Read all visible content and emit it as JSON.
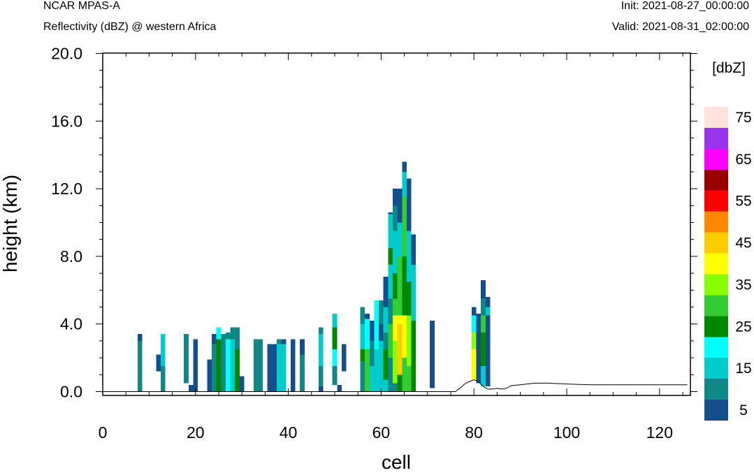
{
  "header": {
    "model": "NCAR MPAS-A",
    "field": "Reflectivity (dBZ) @ western Africa",
    "init": "Init: 2021-08-27_00:00:00",
    "valid": "Valid: 2021-08-31_02:00:00"
  },
  "chart_data": {
    "type": "heatmap",
    "xlabel": "cell",
    "ylabel": "height (km)",
    "xlim": [
      0,
      126
    ],
    "ylim": [
      0,
      20
    ],
    "x_ticks": [
      "0",
      "20",
      "40",
      "60",
      "80",
      "100",
      "120"
    ],
    "y_ticks": [
      "0.0",
      "4.0",
      "8.0",
      "12.0",
      "16.0",
      "20.0"
    ],
    "colorbar": {
      "unit_label": "[dbZ]",
      "labels": [
        "5",
        "15",
        "25",
        "35",
        "45",
        "55",
        "65",
        "75"
      ],
      "colors": [
        "#134f8c",
        "#118888",
        "#00cccc",
        "#00ffff",
        "#008800",
        "#33cc33",
        "#88ff00",
        "#ffff00",
        "#ffcc00",
        "#ff8800",
        "#ff0000",
        "#990000",
        "#ff00ff",
        "#9933ee",
        "#ffe2dc"
      ]
    },
    "columns": [
      {
        "x": 8,
        "segments": [
          [
            0,
            3.0,
            1
          ],
          [
            3.0,
            3.4,
            0
          ]
        ]
      },
      {
        "x": 12,
        "segments": [
          [
            1.2,
            2.2,
            0
          ]
        ]
      },
      {
        "x": 13,
        "segments": [
          [
            0,
            1.5,
            1
          ],
          [
            1.5,
            2.8,
            2
          ],
          [
            2.8,
            3.4,
            2
          ]
        ]
      },
      {
        "x": 18,
        "segments": [
          [
            0.5,
            3.0,
            1
          ],
          [
            3.0,
            3.4,
            1
          ]
        ]
      },
      {
        "x": 19,
        "segments": [
          [
            0,
            0.4,
            0
          ]
        ]
      },
      {
        "x": 20,
        "segments": [
          [
            0,
            3.1,
            0
          ]
        ]
      },
      {
        "x": 23,
        "segments": [
          [
            0,
            1.9,
            0
          ]
        ]
      },
      {
        "x": 24,
        "segments": [
          [
            0,
            2.8,
            1
          ],
          [
            2.8,
            3.4,
            0
          ]
        ]
      },
      {
        "x": 25,
        "segments": [
          [
            0,
            3.1,
            4
          ],
          [
            3.1,
            3.8,
            3
          ]
        ]
      },
      {
        "x": 26,
        "segments": [
          [
            0,
            3.4,
            1
          ]
        ]
      },
      {
        "x": 27,
        "segments": [
          [
            0,
            3.1,
            3
          ],
          [
            3.1,
            3.5,
            1
          ]
        ]
      },
      {
        "x": 28,
        "segments": [
          [
            0,
            3.1,
            2
          ],
          [
            3.1,
            3.8,
            1
          ]
        ]
      },
      {
        "x": 29,
        "segments": [
          [
            0,
            2.5,
            4
          ],
          [
            2.5,
            3.8,
            1
          ]
        ]
      },
      {
        "x": 30,
        "segments": [
          [
            0,
            0.9,
            0
          ]
        ]
      },
      {
        "x": 33,
        "segments": [
          [
            0,
            3.1,
            1
          ]
        ]
      },
      {
        "x": 34,
        "segments": [
          [
            0,
            3.1,
            1
          ]
        ]
      },
      {
        "x": 36,
        "segments": [
          [
            0,
            2.8,
            0
          ]
        ]
      },
      {
        "x": 37,
        "segments": [
          [
            0,
            2.8,
            0
          ]
        ]
      },
      {
        "x": 38,
        "segments": [
          [
            0,
            2.8,
            2
          ],
          [
            2.8,
            3.1,
            1
          ]
        ]
      },
      {
        "x": 39,
        "segments": [
          [
            0,
            2.8,
            2
          ],
          [
            2.8,
            3.1,
            0
          ]
        ]
      },
      {
        "x": 41,
        "segments": [
          [
            0,
            3.1,
            0
          ]
        ]
      },
      {
        "x": 43,
        "segments": [
          [
            0,
            2.2,
            1
          ],
          [
            2.2,
            2.8,
            0
          ],
          [
            2.8,
            3.1,
            0
          ]
        ]
      },
      {
        "x": 47,
        "segments": [
          [
            0,
            0.3,
            0
          ],
          [
            0.3,
            1.5,
            1
          ],
          [
            1.5,
            3.4,
            2
          ],
          [
            3.4,
            3.8,
            1
          ]
        ]
      },
      {
        "x": 50,
        "segments": [
          [
            0.4,
            1.5,
            1
          ],
          [
            1.5,
            2.5,
            3
          ],
          [
            2.5,
            3.8,
            4
          ],
          [
            3.8,
            4.6,
            2
          ]
        ]
      },
      {
        "x": 51,
        "segments": [
          [
            0,
            0.4,
            0
          ]
        ]
      },
      {
        "x": 52,
        "segments": [
          [
            1.2,
            2.8,
            0
          ]
        ]
      },
      {
        "x": 56,
        "segments": [
          [
            0,
            1.8,
            1
          ],
          [
            1.8,
            2.5,
            4
          ],
          [
            2.5,
            4.0,
            2
          ],
          [
            4.0,
            5.0,
            1
          ]
        ]
      },
      {
        "x": 57,
        "segments": [
          [
            0,
            2.5,
            5
          ],
          [
            2.5,
            4.3,
            3
          ],
          [
            4.3,
            4.6,
            0
          ]
        ]
      },
      {
        "x": 58,
        "segments": [
          [
            0,
            1.5,
            2
          ],
          [
            1.5,
            3.0,
            1
          ],
          [
            3.0,
            4.2,
            0
          ]
        ]
      },
      {
        "x": 59,
        "segments": [
          [
            0,
            2.5,
            2
          ],
          [
            2.5,
            5.4,
            3
          ]
        ]
      },
      {
        "x": 60,
        "segments": [
          [
            0,
            3.0,
            2
          ],
          [
            3.0,
            4.0,
            0
          ],
          [
            4.0,
            5.4,
            1
          ]
        ]
      },
      {
        "x": 61,
        "segments": [
          [
            0,
            0.7,
            2
          ],
          [
            0.7,
            2.5,
            4
          ],
          [
            2.5,
            3.5,
            1
          ],
          [
            3.5,
            5.0,
            2
          ],
          [
            5.0,
            6.8,
            0
          ]
        ]
      },
      {
        "x": 62,
        "segments": [
          [
            0,
            2.0,
            1
          ],
          [
            2.0,
            4.0,
            5
          ],
          [
            4.0,
            5.5,
            1
          ],
          [
            5.5,
            7.5,
            2
          ],
          [
            7.5,
            8.5,
            4
          ],
          [
            8.5,
            10.5,
            2
          ],
          [
            10.5,
            10.6,
            0
          ]
        ]
      },
      {
        "x": 63,
        "segments": [
          [
            0,
            0.5,
            1
          ],
          [
            0.5,
            3.0,
            6
          ],
          [
            3.0,
            4.5,
            7
          ],
          [
            4.5,
            5.5,
            5
          ],
          [
            5.5,
            7.0,
            4
          ],
          [
            7.0,
            9.5,
            2
          ],
          [
            9.5,
            11.0,
            1
          ],
          [
            11.0,
            12.0,
            0
          ]
        ]
      },
      {
        "x": 64,
        "segments": [
          [
            0,
            1.0,
            4
          ],
          [
            1.0,
            4.0,
            8
          ],
          [
            4.0,
            4.5,
            7
          ],
          [
            4.5,
            8.0,
            5
          ],
          [
            8.0,
            10.0,
            2
          ],
          [
            10.0,
            12.0,
            0
          ]
        ]
      },
      {
        "x": 65,
        "segments": [
          [
            0,
            2.0,
            5
          ],
          [
            2.0,
            4.5,
            7
          ],
          [
            4.5,
            8.0,
            4
          ],
          [
            8.0,
            11.5,
            5
          ],
          [
            11.5,
            13.0,
            2
          ],
          [
            13.0,
            13.6,
            0
          ]
        ]
      },
      {
        "x": 66,
        "segments": [
          [
            0,
            1.5,
            5
          ],
          [
            1.5,
            4.5,
            6
          ],
          [
            4.5,
            6.5,
            4
          ],
          [
            6.5,
            9.5,
            2
          ],
          [
            9.5,
            12.6,
            0
          ]
        ]
      },
      {
        "x": 67,
        "segments": [
          [
            0,
            4.2,
            4
          ],
          [
            4.2,
            7.5,
            2
          ],
          [
            7.5,
            9.3,
            0
          ]
        ]
      },
      {
        "x": 71,
        "segments": [
          [
            0.2,
            4.2,
            0
          ]
        ]
      },
      {
        "x": 80,
        "segments": [
          [
            0.7,
            2.5,
            7
          ],
          [
            2.5,
            3.5,
            6
          ],
          [
            3.5,
            4.5,
            3
          ],
          [
            4.5,
            5.0,
            0
          ]
        ]
      },
      {
        "x": 81,
        "segments": [
          [
            0.5,
            4.2,
            0
          ],
          [
            4.2,
            4.6,
            0
          ]
        ]
      },
      {
        "x": 82,
        "segments": [
          [
            0.3,
            1.5,
            2
          ],
          [
            1.5,
            3.5,
            4
          ],
          [
            3.5,
            4.5,
            5
          ],
          [
            4.5,
            5.5,
            1
          ],
          [
            5.5,
            6.6,
            0
          ]
        ]
      },
      {
        "x": 83,
        "segments": [
          [
            0.3,
            4.5,
            0
          ],
          [
            4.5,
            5.0,
            2
          ],
          [
            5.0,
            5.6,
            0
          ]
        ]
      }
    ],
    "terrain": [
      [
        0,
        0
      ],
      [
        76,
        0
      ],
      [
        77,
        0.2
      ],
      [
        78,
        0.45
      ],
      [
        79,
        0.6
      ],
      [
        80,
        0.7
      ],
      [
        81,
        0.6
      ],
      [
        82,
        0.3
      ],
      [
        83,
        0.15
      ],
      [
        84,
        0.15
      ],
      [
        85,
        0.2
      ],
      [
        86,
        0.15
      ],
      [
        87,
        0.2
      ],
      [
        88,
        0.35
      ],
      [
        90,
        0.4
      ],
      [
        93,
        0.5
      ],
      [
        96,
        0.5
      ],
      [
        100,
        0.45
      ],
      [
        105,
        0.4
      ],
      [
        110,
        0.4
      ],
      [
        115,
        0.4
      ],
      [
        120,
        0.4
      ],
      [
        126,
        0.4
      ]
    ]
  }
}
